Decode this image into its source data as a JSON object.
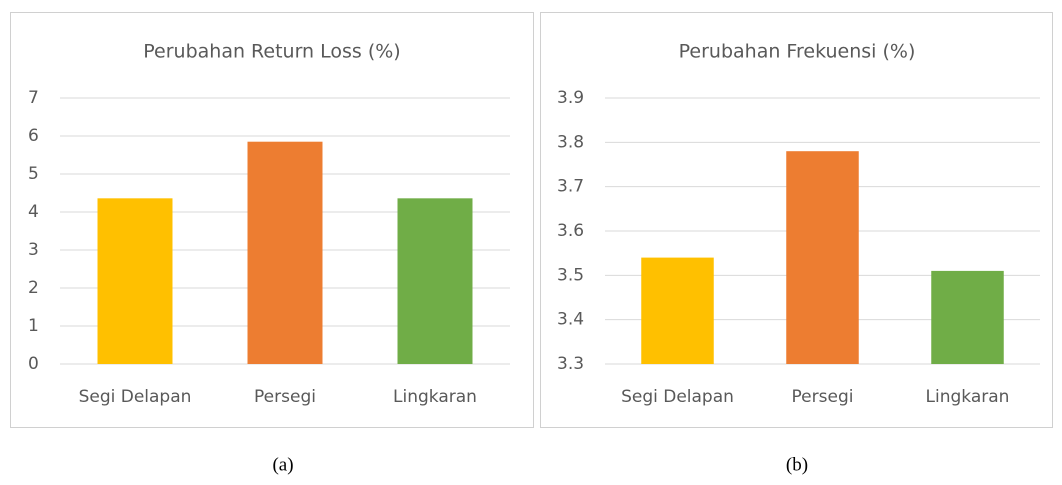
{
  "chart_data": [
    {
      "type": "bar",
      "title": "Perubahan Return Loss (%)",
      "categories": [
        "Segi Delapan",
        "Persegi",
        "Lingkaran"
      ],
      "values": [
        4.36,
        5.85,
        4.36
      ],
      "colors": [
        "#ffc000",
        "#ed7d31",
        "#70ad47"
      ],
      "ylim": [
        0,
        7
      ],
      "yticks": [
        0,
        1,
        2,
        3,
        4,
        5,
        6,
        7
      ],
      "grid": true
    },
    {
      "type": "bar",
      "title": "Perubahan Frekuensi (%)",
      "categories": [
        "Segi Delapan",
        "Persegi",
        "Lingkaran"
      ],
      "values": [
        3.54,
        3.78,
        3.51
      ],
      "colors": [
        "#ffc000",
        "#ed7d31",
        "#70ad47"
      ],
      "ylim": [
        3.3,
        3.9
      ],
      "yticks": [
        3.3,
        3.4,
        3.5,
        3.6,
        3.7,
        3.8,
        3.9
      ],
      "grid": true
    }
  ],
  "captions": [
    "(a)",
    "(b)"
  ]
}
